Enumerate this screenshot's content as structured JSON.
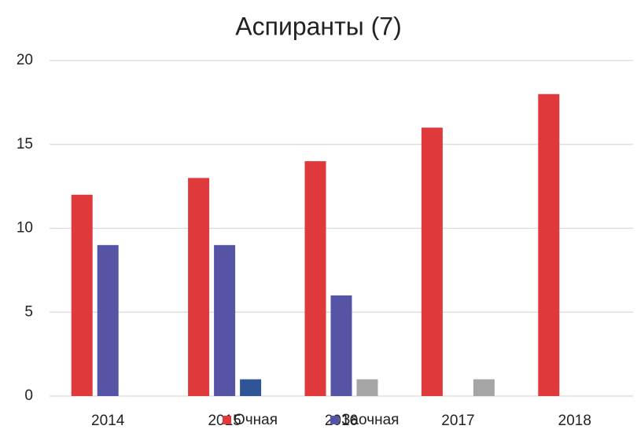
{
  "chart_data": {
    "type": "bar",
    "title": "Аспиранты (7)",
    "categories": [
      "2014",
      "2015",
      "2016",
      "2017",
      "2018"
    ],
    "series": [
      {
        "name": "Очная",
        "color": "#e0393b",
        "values": [
          12,
          13,
          14,
          16,
          18
        ]
      },
      {
        "name": "Заочная",
        "color": "#5554a5",
        "values": [
          9,
          9,
          6,
          0,
          0
        ]
      },
      {
        "colors": [
          "#a5a5a5",
          "#2f5597",
          "#a5a5a5",
          "#a5a5a5",
          "#a5a5a5"
        ],
        "values": [
          0,
          1,
          1,
          1,
          0
        ]
      }
    ],
    "ylim": [
      0,
      20
    ],
    "yticks": [
      0,
      5,
      10,
      15,
      20
    ],
    "grid": true,
    "legend": "bottom"
  }
}
